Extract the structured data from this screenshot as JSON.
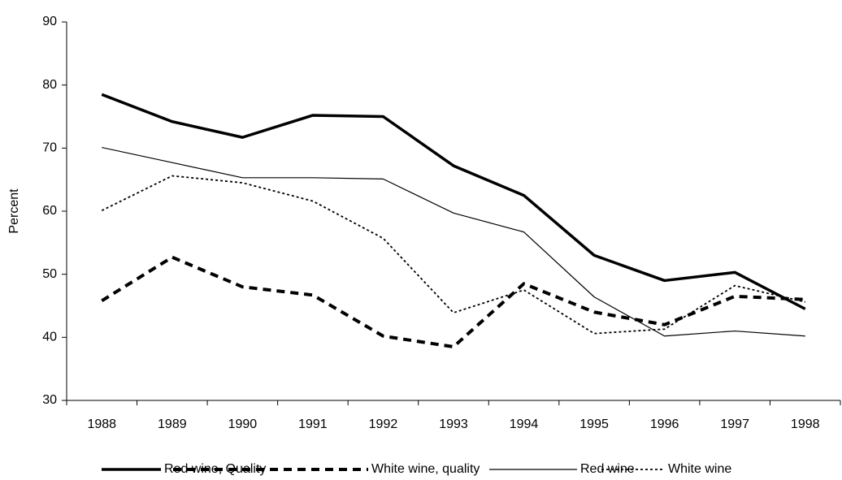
{
  "chart_data": {
    "type": "line",
    "y_label": "Percent",
    "categories": [
      "1988",
      "1989",
      "1990",
      "1991",
      "1992",
      "1993",
      "1994",
      "1995",
      "1996",
      "1997",
      "1998"
    ],
    "ylim": [
      30,
      90
    ],
    "yticks": [
      30,
      40,
      50,
      60,
      70,
      80,
      90
    ],
    "series": [
      {
        "name": "Red wine, Quality",
        "color": "#000000",
        "dash": "solid",
        "width": 3.5,
        "values": [
          78.5,
          74.2,
          71.7,
          75.2,
          75.0,
          67.2,
          62.5,
          53.0,
          49.0,
          50.3,
          44.5
        ]
      },
      {
        "name": "White wine, quality",
        "color": "#000000",
        "dash": "dashed",
        "width": 4,
        "values": [
          45.8,
          52.7,
          48.0,
          46.7,
          40.2,
          38.5,
          48.5,
          44.0,
          42.0,
          46.5,
          46.0
        ]
      },
      {
        "name": "Red wine",
        "color": "#000000",
        "dash": "solid",
        "width": 1.2,
        "values": [
          70.1,
          67.7,
          65.3,
          65.3,
          65.1,
          59.7,
          56.7,
          46.4,
          40.2,
          41.0,
          40.2
        ]
      },
      {
        "name": "White wine",
        "color": "#000000",
        "dash": "dotted",
        "width": 1.8,
        "values": [
          60.1,
          65.6,
          64.5,
          61.6,
          55.7,
          43.9,
          47.5,
          40.6,
          41.3,
          48.2,
          45.6
        ]
      }
    ],
    "legend": "bottom"
  }
}
